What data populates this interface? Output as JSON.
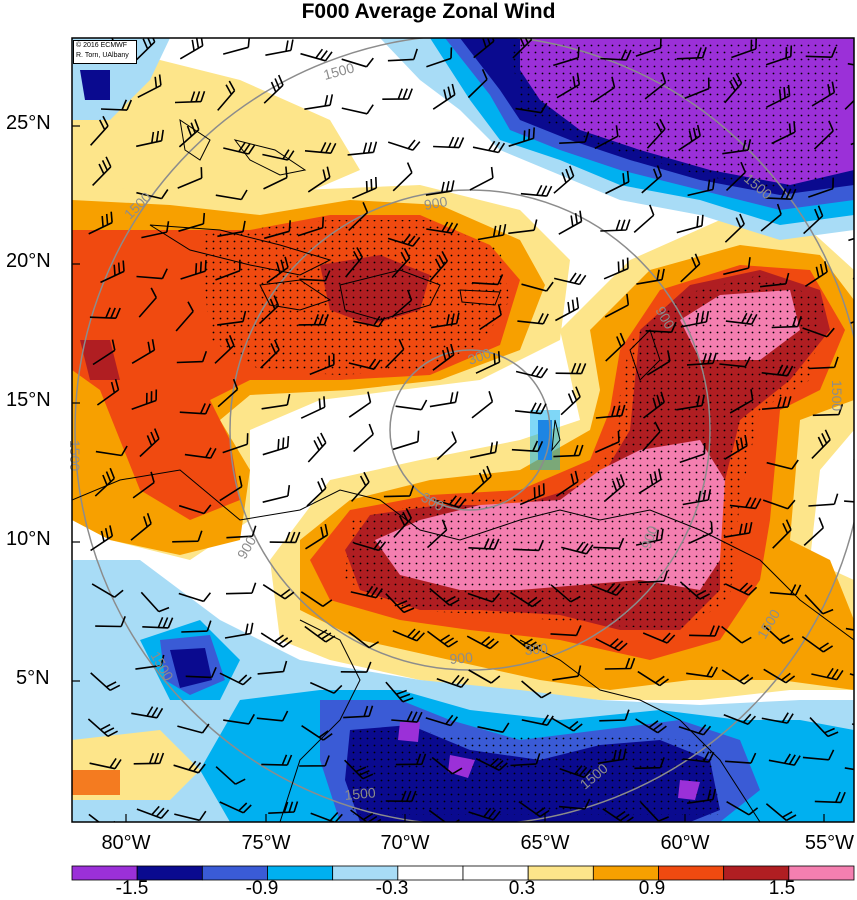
{
  "title": "F000 Average Zonal Wind",
  "credit": {
    "line1": "© 2016 ECMWF",
    "line2": "R. Torn, UAlbany"
  },
  "lat_labels": [
    "25°N",
    "20°N",
    "15°N",
    "10°N",
    "5°N"
  ],
  "lon_labels": [
    "80°W",
    "75°W",
    "70°W",
    "65°W",
    "60°W",
    "55°W"
  ],
  "colorbar": {
    "colors": [
      "#9b30d8",
      "#0a0a8f",
      "#3a5bd6",
      "#00b0f0",
      "#a8dcf6",
      "#ffffff",
      "#ffffff",
      "#fde58a",
      "#f7a000",
      "#f04a10",
      "#b01e22",
      "#f47fb0"
    ],
    "labels": [
      "-1.5",
      "-0.9",
      "-0.3",
      "0.3",
      "0.9",
      "1.5"
    ]
  },
  "range_ring_labels": [
    "300",
    "300",
    "900",
    "900",
    "900",
    "900",
    "1500",
    "1500",
    "1500",
    "1500",
    "1500",
    "1500"
  ],
  "colors": {
    "range_ring": "#8c8c8c",
    "coast": "#000000",
    "barb": "#000000"
  }
}
